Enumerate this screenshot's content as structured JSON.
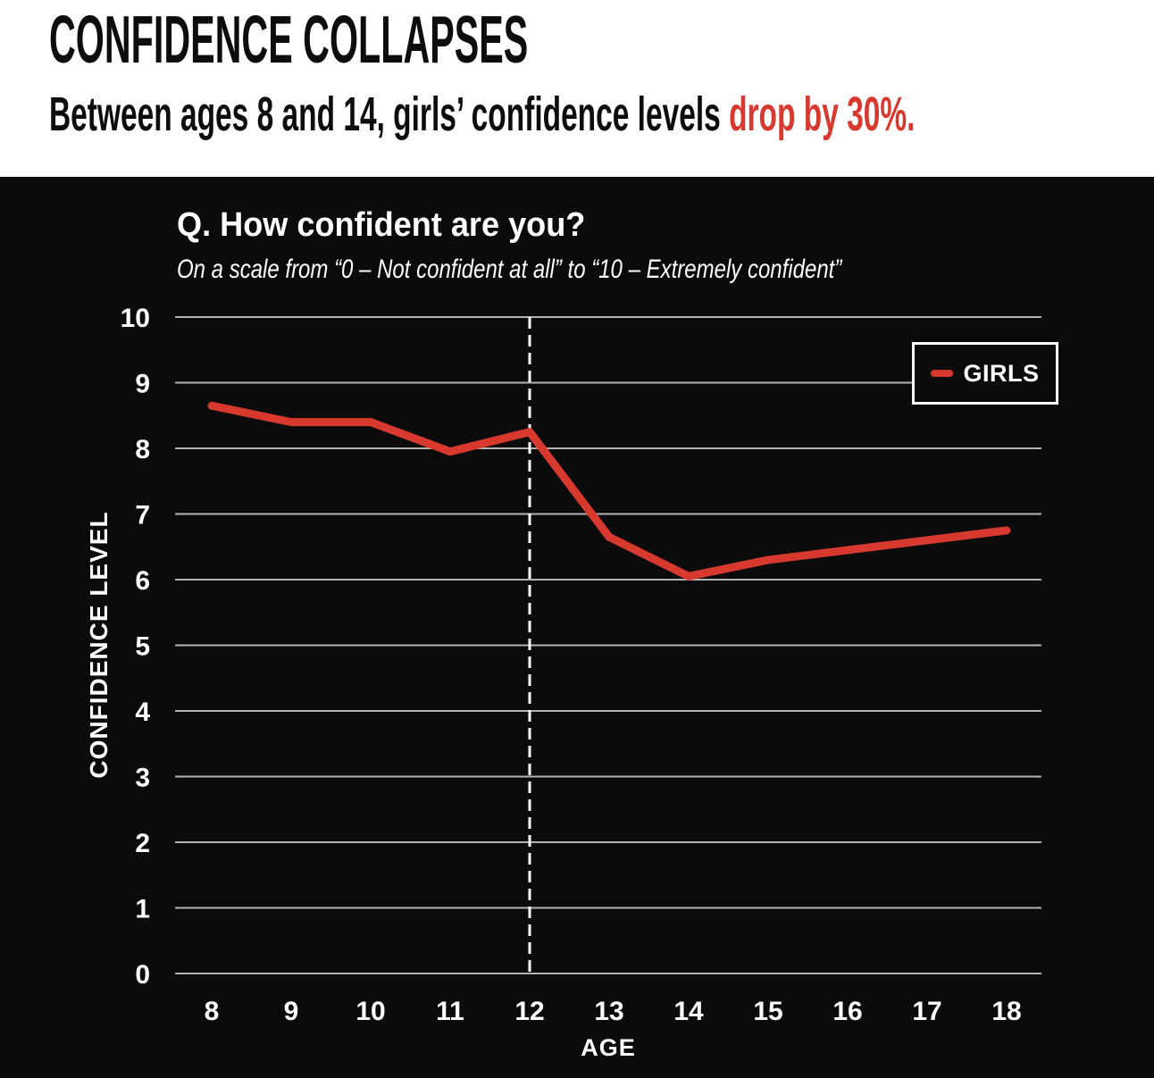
{
  "header": {
    "title": "CONFIDENCE COLLAPSES",
    "subtitle_plain": "Between ages 8 and 14, girls’ confidence levels ",
    "subtitle_highlight": "drop by 30%.",
    "accent_color": "#d8392f",
    "background_color": "#ffffff",
    "text_color": "#0d0d0d"
  },
  "chart": {
    "title": "Q. How confident are you?",
    "subtitle": "On a scale from “0 – Not confident at all” to “10 – Extremely confident”",
    "legend_label": "GIRLS",
    "x_axis_label": "AGE",
    "y_axis_label": "CONFIDENCE LEVEL",
    "background_color": "#0b0b0b",
    "gridline_color": "#b3b3b3",
    "text_color": "#ffffff"
  },
  "chart_data": {
    "type": "line",
    "title": "Q. How confident are you?",
    "subtitle": "On a scale from “0 – Not confident at all” to “10 – Extremely confident”",
    "x": [
      8,
      9,
      10,
      11,
      12,
      13,
      14,
      15,
      16,
      17,
      18
    ],
    "xlabel": "AGE",
    "ylabel": "CONFIDENCE LEVEL",
    "ylim": [
      0,
      10
    ],
    "y_ticks": [
      0,
      1,
      2,
      3,
      4,
      5,
      6,
      7,
      8,
      9,
      10
    ],
    "grid": "horizontal",
    "legend_position": "top-right",
    "series": [
      {
        "name": "GIRLS",
        "color": "#d8392f",
        "values": [
          8.65,
          8.4,
          8.4,
          7.95,
          8.25,
          6.65,
          6.05,
          6.3,
          6.45,
          6.6,
          6.75
        ]
      }
    ],
    "annotations": [
      {
        "type": "vertical-dashed-line",
        "x": 12,
        "color": "#ffffff"
      }
    ]
  }
}
